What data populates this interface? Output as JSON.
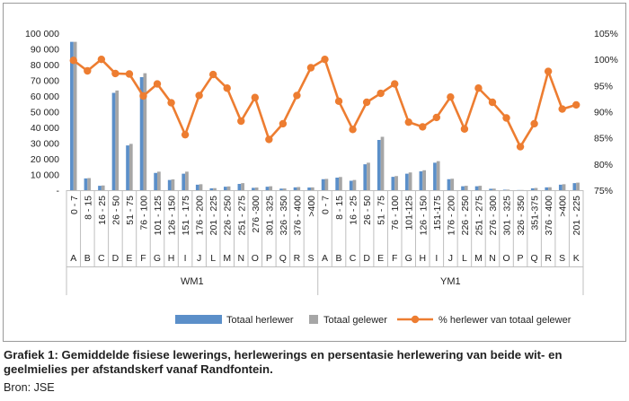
{
  "chart_data": {
    "type": "bar",
    "left_axis": {
      "ticks": [
        "100 000",
        "90 000",
        "80 000",
        "70 000",
        "60 000",
        "50 000",
        "40 000",
        "30 000",
        "20 000",
        "10 000",
        "-"
      ],
      "ylim": [
        0,
        100000
      ]
    },
    "right_axis": {
      "ticks": [
        "105%",
        "100%",
        "95%",
        "90%",
        "85%",
        "80%",
        "75%"
      ],
      "ylim": [
        75,
        105
      ]
    },
    "groups": [
      {
        "name": "WM1",
        "categories": [
          {
            "range": "0 - 7",
            "code": "A"
          },
          {
            "range": "8 - 15",
            "code": "B"
          },
          {
            "range": "16 - 25",
            "code": "C"
          },
          {
            "range": "26 - 50",
            "code": "D"
          },
          {
            "range": "51 - 75",
            "code": "E"
          },
          {
            "range": "76 - 100",
            "code": "F"
          },
          {
            "range": "101 - 125",
            "code": "G"
          },
          {
            "range": "126 - 150",
            "code": "H"
          },
          {
            "range": "151 - 175",
            "code": "I"
          },
          {
            "range": "176 - 200",
            "code": "J"
          },
          {
            "range": "201 - 225",
            "code": "L"
          },
          {
            "range": "226 - 250",
            "code": "M"
          },
          {
            "range": "251 - 275",
            "code": "N"
          },
          {
            "range": "276 -300",
            "code": "O"
          },
          {
            "range": "301 - 325",
            "code": "P"
          },
          {
            "range": "326 - 350",
            "code": "Q"
          },
          {
            "range": "376 - 400",
            "code": "R"
          },
          {
            "range": ">400",
            "code": "S"
          }
        ]
      },
      {
        "name": "YM1",
        "categories": [
          {
            "range": "0 - 7",
            "code": "A"
          },
          {
            "range": "8 - 15",
            "code": "B"
          },
          {
            "range": "16 - 25",
            "code": "C"
          },
          {
            "range": "26 - 50",
            "code": "D"
          },
          {
            "range": "51 - 75",
            "code": "E"
          },
          {
            "range": "76 - 100",
            "code": "F"
          },
          {
            "range": "101-125",
            "code": "G"
          },
          {
            "range": "126 - 150",
            "code": "H"
          },
          {
            "range": "151-175",
            "code": "I"
          },
          {
            "range": "176 - 200",
            "code": "J"
          },
          {
            "range": "226 - 250",
            "code": "L"
          },
          {
            "range": "251 - 275",
            "code": "M"
          },
          {
            "range": "276 - 300",
            "code": "N"
          },
          {
            "range": "301 - 325",
            "code": "O"
          },
          {
            "range": "326 - 350",
            "code": "P"
          },
          {
            "range": "351-375",
            "code": "Q"
          },
          {
            "range": "376 - 400",
            "code": "R"
          },
          {
            "range": ">400",
            "code": "S"
          },
          {
            "range": "201 - 225",
            "code": "K"
          }
        ]
      }
    ],
    "series": [
      {
        "name": "Totaal herlewer",
        "axis": "left",
        "kind": "bar",
        "color": "#5b8fc9",
        "values": [
          94500,
          7500,
          2800,
          62000,
          28500,
          72000,
          11000,
          6500,
          10500,
          3500,
          1200,
          2200,
          4000,
          1500,
          2200,
          1000,
          1800,
          1700,
          7000,
          8000,
          6000,
          16500,
          32000,
          8500,
          10500,
          12000,
          17500,
          7000,
          2500,
          2500,
          900,
          300,
          100,
          1200,
          1800,
          3500,
          4500
        ]
      },
      {
        "name": "Totaal gelewer",
        "axis": "left",
        "kind": "bar",
        "color": "#a6a6a6",
        "values": [
          94500,
          7700,
          3000,
          63500,
          29500,
          74500,
          11800,
          6900,
          11800,
          3800,
          1300,
          2400,
          4500,
          1700,
          2500,
          1100,
          2000,
          1800,
          7200,
          8400,
          6500,
          17500,
          34000,
          9000,
          11300,
          12700,
          18500,
          7300,
          2800,
          2800,
          1000,
          350,
          120,
          1400,
          1900,
          3800,
          4800
        ]
      },
      {
        "name": "% herlewer van totaal gelewer",
        "axis": "right",
        "kind": "line",
        "color": "#ed7d31",
        "values": [
          99.8,
          97.8,
          100.0,
          97.3,
          97.2,
          93.0,
          95.3,
          91.7,
          85.6,
          93.1,
          97.1,
          94.5,
          88.2,
          92.7,
          84.7,
          87.7,
          93.1,
          98.4,
          100.0,
          92.0,
          86.6,
          91.8,
          93.5,
          95.3,
          88.0,
          87.1,
          88.9,
          92.8,
          86.7,
          94.5,
          91.8,
          88.8,
          83.3,
          87.7,
          97.7,
          90.5,
          91.3
        ]
      }
    ]
  },
  "caption": "Grafiek 1: Gemiddelde fisiese lewerings, herlewerings en persentasie herlewering van beide wit- en geelmielies per afstandskerf vanaf Randfontein.",
  "source": "Bron: JSE"
}
